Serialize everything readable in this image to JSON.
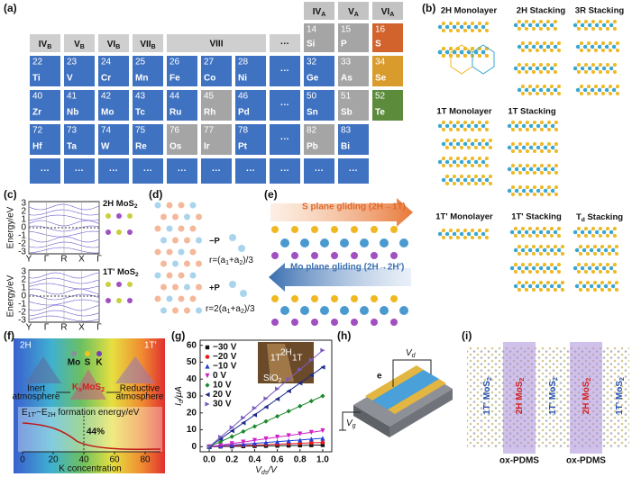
{
  "panel_labels": [
    "(a)",
    "(b)",
    "(c)",
    "(d)",
    "(e)",
    "(f)",
    "(g)",
    "(h)",
    "(i)"
  ],
  "periodic_table": {
    "group_headers": [
      [
        "IV",
        {
          "sub": "B"
        }
      ],
      [
        "V",
        {
          "sub": "B"
        }
      ],
      [
        "VI",
        {
          "sub": "B"
        }
      ],
      [
        "VII",
        {
          "sub": "B"
        }
      ],
      "VIII",
      "···"
    ],
    "main_headers": [
      [
        "IV",
        {
          "sub": "A"
        }
      ],
      [
        "V",
        {
          "sub": "A"
        }
      ],
      [
        "VI",
        {
          "sub": "A"
        }
      ]
    ],
    "rows": [
      [
        null,
        null,
        null,
        null,
        null,
        null,
        null,
        null,
        {
          "number": 14,
          "symbol": "Si",
          "color": "#a5a5a5"
        },
        {
          "number": 15,
          "symbol": "P",
          "color": "#a5a5a5"
        },
        {
          "number": 16,
          "symbol": "S",
          "color": "#d2632c"
        }
      ],
      [
        {
          "number": 22,
          "symbol": "Ti",
          "color": "#3f72c1"
        },
        {
          "number": 23,
          "symbol": "V",
          "color": "#3f72c1"
        },
        {
          "number": 24,
          "symbol": "Cr",
          "color": "#3f72c1"
        },
        {
          "number": 25,
          "symbol": "Mn",
          "color": "#3f72c1"
        },
        {
          "number": 26,
          "symbol": "Fe",
          "color": "#3f72c1"
        },
        {
          "number": 27,
          "symbol": "Co",
          "color": "#3f72c1"
        },
        {
          "number": 28,
          "symbol": "Ni",
          "color": "#3f72c1"
        },
        {
          "symbol": "···",
          "color": "#3f72c1"
        },
        {
          "number": 32,
          "symbol": "Ge",
          "color": "#3f72c1"
        },
        {
          "number": 33,
          "symbol": "As",
          "color": "#a5a5a5"
        },
        {
          "number": 34,
          "symbol": "Se",
          "color": "#d99b2b"
        }
      ],
      [
        {
          "number": 40,
          "symbol": "Zr",
          "color": "#3f72c1"
        },
        {
          "number": 41,
          "symbol": "Nb",
          "color": "#3f72c1"
        },
        {
          "number": 42,
          "symbol": "Mo",
          "color": "#3f72c1"
        },
        {
          "number": 43,
          "symbol": "Tc",
          "color": "#3f72c1"
        },
        {
          "number": 44,
          "symbol": "Ru",
          "color": "#3f72c1"
        },
        {
          "number": 45,
          "symbol": "Rh",
          "color": "#a5a5a5"
        },
        {
          "number": 46,
          "symbol": "Pd",
          "color": "#3f72c1"
        },
        {
          "symbol": "···",
          "color": "#3f72c1"
        },
        {
          "number": 50,
          "symbol": "Sn",
          "color": "#3f72c1"
        },
        {
          "number": 51,
          "symbol": "Sb",
          "color": "#a5a5a5"
        },
        {
          "number": 52,
          "symbol": "Te",
          "color": "#5c8b3c"
        }
      ],
      [
        {
          "number": 72,
          "symbol": "Hf",
          "color": "#3f72c1"
        },
        {
          "number": 73,
          "symbol": "Ta",
          "color": "#3f72c1"
        },
        {
          "number": 74,
          "symbol": "W",
          "color": "#3f72c1"
        },
        {
          "number": 75,
          "symbol": "Re",
          "color": "#3f72c1"
        },
        {
          "number": 76,
          "symbol": "Os",
          "color": "#a5a5a5"
        },
        {
          "number": 77,
          "symbol": "Ir",
          "color": "#a5a5a5"
        },
        {
          "number": 78,
          "symbol": "Pt",
          "color": "#3f72c1"
        },
        {
          "symbol": "···",
          "color": "#3f72c1"
        },
        {
          "number": 82,
          "symbol": "Pb",
          "color": "#a5a5a5"
        },
        {
          "number": 83,
          "symbol": "Bi",
          "color": "#3f72c1"
        },
        null
      ],
      [
        {
          "symbol": "···",
          "color": "#3f72c1"
        },
        {
          "symbol": "···",
          "color": "#3f72c1"
        },
        {
          "symbol": "···",
          "color": "#3f72c1"
        },
        {
          "symbol": "···",
          "color": "#3f72c1"
        },
        {
          "symbol": "···",
          "color": "#3f72c1"
        },
        {
          "symbol": "···",
          "color": "#3f72c1"
        },
        {
          "symbol": "···",
          "color": "#3f72c1"
        },
        {
          "symbol": "···",
          "color": "#3f72c1"
        },
        {
          "symbol": "···",
          "color": "#3f72c1"
        },
        {
          "symbol": "···",
          "color": "#3f72c1"
        },
        null
      ]
    ]
  },
  "panel_b": {
    "labels": [
      "2H Monolayer",
      "2H Stacking",
      "3R Stacking",
      "1T Monolayer",
      "1T Stacking",
      "1T' Monolayer",
      "1T' Stacking",
      [
        "T",
        {
          "sub": "d"
        },
        " Stacking"
      ]
    ]
  },
  "panel_c": {
    "label_2h": [
      "2H MoS",
      {
        "sub": "2"
      }
    ],
    "label_1t": [
      "1T' MoS",
      {
        "sub": "2"
      }
    ],
    "ylabel": "Energy/eV",
    "yticks": [
      3,
      2,
      1,
      0,
      -1,
      -2,
      -3
    ],
    "kpoints": [
      "Y",
      "Γ",
      "R",
      "X",
      "Γ"
    ]
  },
  "panel_d": {
    "minus_p": "−P",
    "plus_p": "+P",
    "r1": [
      "r=(a",
      {
        "sub": "1"
      },
      "+a",
      {
        "sub": "2"
      },
      ")/3"
    ],
    "r2": [
      "r=2(a",
      {
        "sub": "1"
      },
      "+a",
      {
        "sub": "2"
      },
      ")/3"
    ]
  },
  "panel_e": {
    "s_plane": "S plane gliding (2H→1T)",
    "mo_plane": "Mo plane gliding (2H→2H′)"
  },
  "panel_f": {
    "phase_left": "2H",
    "phase_right": "1T′",
    "atoms": [
      "Mo",
      "S",
      "K"
    ],
    "inert": [
      "Inert",
      "atmosphere"
    ],
    "reductive": [
      "Reductive",
      "atmosphere"
    ],
    "compound": [
      "K",
      {
        "sub": "x"
      },
      "MoS",
      {
        "sub": "2"
      }
    ],
    "energy_label": [
      "E",
      {
        "sub": "1T′"
      },
      "−E",
      {
        "sub": "2H"
      },
      " formation energy/eV"
    ],
    "percent": "44%",
    "xlabel": "K concentration",
    "xticks": [
      0,
      20,
      40,
      60,
      80
    ]
  },
  "inset_g": {
    "labels": [
      "1T",
      "2H",
      "1T"
    ],
    "substrate": [
      "SiO",
      {
        "sub": "2"
      }
    ]
  },
  "chart_data": {
    "type": "line",
    "xlabel": [
      "V",
      {
        "sub": "ds"
      },
      "/V"
    ],
    "ylabel": [
      "I",
      {
        "sub": "d"
      },
      "/μA"
    ],
    "x": [
      0,
      0.1,
      0.2,
      0.3,
      0.4,
      0.5,
      0.6,
      0.7,
      0.8,
      0.9,
      1.0
    ],
    "xlim": [
      -0.08,
      1.08
    ],
    "ylim": [
      -3,
      63
    ],
    "xticks": [
      {
        "value": 0,
        "label": "0.0"
      },
      0.2,
      0.4,
      0.6,
      0.8,
      {
        "value": 1,
        "label": "1.0"
      }
    ],
    "yticks": [
      0,
      10,
      20,
      30,
      40,
      50,
      60
    ],
    "legend": "upper left",
    "series": [
      {
        "name": "−30 V",
        "color": "#111111",
        "marker": "square",
        "values": [
          0,
          0.1,
          0.2,
          0.3,
          0.4,
          0.5,
          0.6,
          0.7,
          0.8,
          0.9,
          1
        ]
      },
      {
        "name": "−20 V",
        "color": "#e41a1c",
        "marker": "circle",
        "values": [
          0,
          0.3,
          0.5,
          0.8,
          1,
          1.3,
          1.5,
          1.8,
          2,
          2.3,
          2.5
        ]
      },
      {
        "name": "−10 V",
        "color": "#1f3fd6",
        "marker": "triangle-up",
        "values": [
          0,
          0.5,
          1,
          1.5,
          2,
          2.5,
          3,
          3.5,
          4,
          4.5,
          5
        ]
      },
      {
        "name": "0 V",
        "color": "#d020c8",
        "marker": "triangle-down",
        "values": [
          0,
          0.9,
          1.9,
          2.8,
          3.8,
          4.7,
          5.7,
          6.6,
          7.6,
          8.5,
          9.5
        ]
      },
      {
        "name": "10 V",
        "color": "#1a8a2a",
        "marker": "diamond",
        "values": [
          0,
          3,
          6,
          9,
          12,
          15,
          18,
          21,
          24,
          27,
          30
        ]
      },
      {
        "name": "20 V",
        "color": "#1c2a8a",
        "marker": "triangle-left",
        "values": [
          0,
          4.7,
          9.4,
          14.1,
          18.8,
          23.5,
          28.2,
          32.9,
          37.6,
          42.3,
          47
        ]
      },
      {
        "name": "30 V",
        "color": "#7a5cc0",
        "marker": "triangle-right",
        "values": [
          0,
          5.7,
          11.4,
          17.1,
          22.8,
          28.5,
          34.2,
          39.9,
          45.6,
          51.3,
          57
        ]
      }
    ]
  },
  "panel_h": {
    "electron": "e",
    "vd": [
      "V",
      {
        "sub": "d"
      }
    ],
    "vg": [
      "V",
      {
        "sub": "g"
      }
    ]
  },
  "panel_i": {
    "phase_1t": [
      "1T' MoS",
      {
        "sub": "2"
      }
    ],
    "phase_2h": [
      "2H MoS",
      {
        "sub": "2"
      }
    ],
    "substrate": "ox-PDMS"
  }
}
